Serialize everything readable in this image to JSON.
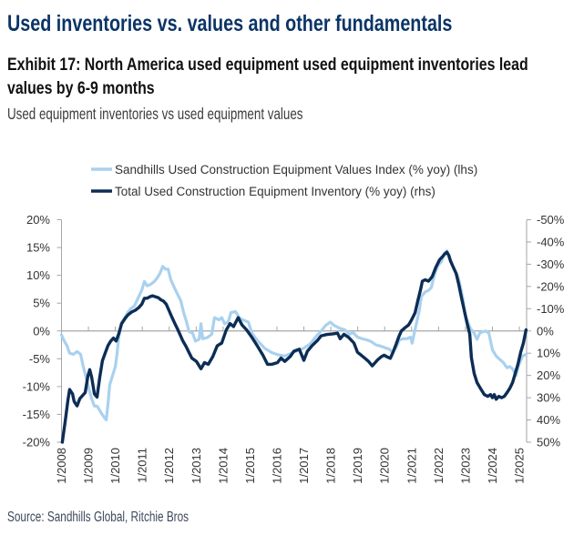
{
  "header": {
    "title": "Used inventories vs. values and other fundamentals",
    "exhibit_line1": "Exhibit 17: North America used equipment used equipment inventories lead",
    "exhibit_line2": "values by 6-9 months",
    "subtitle": "Used equipment inventories vs used equipment values"
  },
  "footer": {
    "source": "Source: Sandhills Global, Ritchie Bros"
  },
  "colors": {
    "values_series": "#a9d1ef",
    "inventory_series": "#0c2d55",
    "title": "#0b3466",
    "axis": "#a6a6a6"
  },
  "chart_data": {
    "type": "line",
    "title": "Used equipment inventories vs used equipment values",
    "xlabel": "",
    "ylabel": "",
    "x_ticks": [
      "1/2008",
      "1/2009",
      "1/2010",
      "1/2011",
      "1/2012",
      "1/2013",
      "1/2014",
      "1/2015",
      "1/2016",
      "1/2017",
      "1/2018",
      "1/2019",
      "1/2020",
      "1/2021",
      "1/2022",
      "1/2023",
      "1/2024",
      "1/2025"
    ],
    "x_range": [
      2008.0,
      2025.29
    ],
    "y_left": {
      "range": [
        -20,
        20
      ],
      "ticks": [
        20,
        15,
        10,
        5,
        0,
        -5,
        -10,
        -15,
        -20
      ],
      "tick_labels": [
        "20%",
        "15%",
        "10%",
        "5%",
        "0%",
        "-5%",
        "-10%",
        "-15%",
        "-20%"
      ]
    },
    "y_right": {
      "range": [
        50,
        -50
      ],
      "inverted": true,
      "ticks": [
        -50,
        -40,
        -30,
        -20,
        -10,
        0,
        10,
        20,
        30,
        40,
        50
      ],
      "tick_labels": [
        "-50%",
        "-40%",
        "-30%",
        "-20%",
        "-10%",
        "0%",
        "10%",
        "20%",
        "30%",
        "40%",
        "50%"
      ]
    },
    "grid": false,
    "legend_position": "top",
    "series": [
      {
        "name": "Sandhills Used Construction Equipment Values Index (% yoy) (lhs)",
        "axis": "left",
        "points": [
          [
            2008.0,
            -0.7
          ],
          [
            2008.1,
            -1.8
          ],
          [
            2008.2,
            -2.6
          ],
          [
            2008.3,
            -4.0
          ],
          [
            2008.44,
            -4.2
          ],
          [
            2008.58,
            -3.7
          ],
          [
            2008.71,
            -4.2
          ],
          [
            2008.81,
            -6.4
          ],
          [
            2008.91,
            -8.3
          ],
          [
            2009.01,
            -10.3
          ],
          [
            2009.12,
            -12.2
          ],
          [
            2009.22,
            -13.5
          ],
          [
            2009.32,
            -13.5
          ],
          [
            2009.42,
            -14.3
          ],
          [
            2009.52,
            -15.1
          ],
          [
            2009.66,
            -16.0
          ],
          [
            2009.73,
            -13.0
          ],
          [
            2009.79,
            -9.7
          ],
          [
            2009.89,
            -8.1
          ],
          [
            2010.0,
            -6.4
          ],
          [
            2010.06,
            -4.2
          ],
          [
            2010.13,
            -0.9
          ],
          [
            2010.23,
            1.5
          ],
          [
            2010.37,
            2.6
          ],
          [
            2010.47,
            3.4
          ],
          [
            2010.57,
            4.0
          ],
          [
            2010.71,
            4.5
          ],
          [
            2010.84,
            5.9
          ],
          [
            2010.98,
            7.3
          ],
          [
            2011.08,
            8.9
          ],
          [
            2011.18,
            8.1
          ],
          [
            2011.32,
            8.4
          ],
          [
            2011.45,
            8.9
          ],
          [
            2011.55,
            9.5
          ],
          [
            2011.65,
            10.3
          ],
          [
            2011.76,
            11.6
          ],
          [
            2011.86,
            11.1
          ],
          [
            2011.96,
            11.1
          ],
          [
            2012.06,
            9.2
          ],
          [
            2012.16,
            8.1
          ],
          [
            2012.3,
            6.7
          ],
          [
            2012.43,
            5.4
          ],
          [
            2012.53,
            3.4
          ],
          [
            2012.63,
            1.8
          ],
          [
            2012.74,
            -0.1
          ],
          [
            2012.87,
            -0.4
          ],
          [
            2012.97,
            -1.8
          ],
          [
            2013.11,
            -1.5
          ],
          [
            2013.18,
            1.3
          ],
          [
            2013.24,
            -1.4
          ],
          [
            2013.41,
            -1.2
          ],
          [
            2013.58,
            -0.6
          ],
          [
            2013.68,
            2.4
          ],
          [
            2013.85,
            2.0
          ],
          [
            2013.95,
            2.4
          ],
          [
            2014.06,
            1.3
          ],
          [
            2014.19,
            1.6
          ],
          [
            2014.29,
            3.3
          ],
          [
            2014.46,
            3.5
          ],
          [
            2014.6,
            2.4
          ],
          [
            2014.73,
            2.0
          ],
          [
            2014.94,
            1.6
          ],
          [
            2015.07,
            -0.4
          ],
          [
            2015.27,
            -1.7
          ],
          [
            2015.54,
            -3.1
          ],
          [
            2015.81,
            -3.9
          ],
          [
            2016.05,
            -4.3
          ],
          [
            2016.29,
            -4.5
          ],
          [
            2016.49,
            -4.1
          ],
          [
            2016.73,
            -3.6
          ],
          [
            2017.0,
            -3.1
          ],
          [
            2017.24,
            -2.3
          ],
          [
            2017.47,
            -0.9
          ],
          [
            2017.64,
            0.0
          ],
          [
            2017.81,
            1.0
          ],
          [
            2017.98,
            1.6
          ],
          [
            2018.12,
            1.0
          ],
          [
            2018.32,
            0.5
          ],
          [
            2018.52,
            0.2
          ],
          [
            2018.69,
            -0.6
          ],
          [
            2018.83,
            -0.3
          ],
          [
            2018.99,
            -1.1
          ],
          [
            2019.16,
            -1.4
          ],
          [
            2019.33,
            -1.6
          ],
          [
            2019.5,
            -1.9
          ],
          [
            2019.67,
            -2.5
          ],
          [
            2019.84,
            -2.7
          ],
          [
            2020.01,
            -3.0
          ],
          [
            2020.18,
            -3.3
          ],
          [
            2020.28,
            -3.8
          ],
          [
            2020.42,
            -3.0
          ],
          [
            2020.55,
            -1.6
          ],
          [
            2020.69,
            -1.4
          ],
          [
            2020.82,
            -1.4
          ],
          [
            2020.96,
            -1.1
          ],
          [
            2021.02,
            -2.2
          ],
          [
            2021.09,
            -0.6
          ],
          [
            2021.19,
            1.6
          ],
          [
            2021.29,
            3.8
          ],
          [
            2021.36,
            6.2
          ],
          [
            2021.5,
            7.0
          ],
          [
            2021.63,
            7.3
          ],
          [
            2021.73,
            7.8
          ],
          [
            2021.84,
            10.0
          ],
          [
            2021.97,
            11.7
          ],
          [
            2022.11,
            12.5
          ],
          [
            2022.21,
            13.9
          ],
          [
            2022.31,
            14.4
          ],
          [
            2022.41,
            13.1
          ],
          [
            2022.55,
            11.4
          ],
          [
            2022.72,
            9.8
          ],
          [
            2022.8,
            8.2
          ],
          [
            2022.85,
            7.0
          ],
          [
            2022.91,
            5.7
          ],
          [
            2022.98,
            3.0
          ],
          [
            2023.05,
            2.0
          ],
          [
            2023.19,
            0.4
          ],
          [
            2023.32,
            -0.4
          ],
          [
            2023.43,
            -1.5
          ],
          [
            2023.53,
            -0.4
          ],
          [
            2023.66,
            -0.1
          ],
          [
            2023.76,
            0.0
          ],
          [
            2023.87,
            -0.4
          ],
          [
            2024.0,
            -3.4
          ],
          [
            2024.14,
            -4.5
          ],
          [
            2024.27,
            -5.1
          ],
          [
            2024.41,
            -5.7
          ],
          [
            2024.54,
            -6.6
          ],
          [
            2024.64,
            -6.4
          ],
          [
            2024.75,
            -6.8
          ],
          [
            2024.88,
            -8.0
          ],
          [
            2024.98,
            -6.1
          ],
          [
            2025.12,
            -4.5
          ],
          [
            2025.25,
            -4.2
          ]
        ]
      },
      {
        "name": "Total Used Construction Equipment Inventory (% yoy) (rhs)",
        "axis": "right",
        "points": [
          [
            2008.03,
            50
          ],
          [
            2008.14,
            40.5
          ],
          [
            2008.24,
            31
          ],
          [
            2008.3,
            26.3
          ],
          [
            2008.41,
            28.3
          ],
          [
            2008.47,
            31.7
          ],
          [
            2008.58,
            33.7
          ],
          [
            2008.68,
            30.4
          ],
          [
            2008.78,
            29
          ],
          [
            2008.88,
            27.7
          ],
          [
            2008.98,
            20.2
          ],
          [
            2009.05,
            17.4
          ],
          [
            2009.12,
            20.8
          ],
          [
            2009.22,
            28.3
          ],
          [
            2009.32,
            29.7
          ],
          [
            2009.42,
            20.8
          ],
          [
            2009.52,
            13.4
          ],
          [
            2009.62,
            10
          ],
          [
            2009.73,
            6.5
          ],
          [
            2009.83,
            4.5
          ],
          [
            2009.93,
            3.2
          ],
          [
            2010.03,
            4.5
          ],
          [
            2010.13,
            1.1
          ],
          [
            2010.23,
            -3.2
          ],
          [
            2010.37,
            -5.8
          ],
          [
            2010.47,
            -7.2
          ],
          [
            2010.6,
            -8.5
          ],
          [
            2010.74,
            -9.3
          ],
          [
            2010.88,
            -10.6
          ],
          [
            2010.98,
            -12
          ],
          [
            2011.08,
            -14.7
          ],
          [
            2011.18,
            -14.7
          ],
          [
            2011.28,
            -15.4
          ],
          [
            2011.38,
            -15.8
          ],
          [
            2011.48,
            -15.4
          ],
          [
            2011.59,
            -15
          ],
          [
            2011.69,
            -14
          ],
          [
            2011.79,
            -13.4
          ],
          [
            2011.89,
            -12
          ],
          [
            2011.99,
            -9.3
          ],
          [
            2012.09,
            -6.5
          ],
          [
            2012.19,
            -3.8
          ],
          [
            2012.3,
            -1.1
          ],
          [
            2012.4,
            1.6
          ],
          [
            2012.5,
            4.3
          ],
          [
            2012.63,
            7.1
          ],
          [
            2012.74,
            9.8
          ],
          [
            2012.84,
            12.2
          ],
          [
            2013.01,
            13.7
          ],
          [
            2013.18,
            17
          ],
          [
            2013.31,
            14.2
          ],
          [
            2013.45,
            15
          ],
          [
            2013.62,
            11.5
          ],
          [
            2013.78,
            6.7
          ],
          [
            2013.95,
            5.4
          ],
          [
            2014.12,
            -0.5
          ],
          [
            2014.26,
            -3.3
          ],
          [
            2014.39,
            -2
          ],
          [
            2014.56,
            -6
          ],
          [
            2014.7,
            -2.7
          ],
          [
            2014.87,
            -0.5
          ],
          [
            2015.07,
            2.9
          ],
          [
            2015.27,
            6.7
          ],
          [
            2015.48,
            10.9
          ],
          [
            2015.65,
            15
          ],
          [
            2015.81,
            15
          ],
          [
            2016.02,
            14.2
          ],
          [
            2016.15,
            12.2
          ],
          [
            2016.29,
            13.7
          ],
          [
            2016.49,
            11.5
          ],
          [
            2016.63,
            9.1
          ],
          [
            2016.83,
            8.2
          ],
          [
            2017.0,
            13.2
          ],
          [
            2017.13,
            9.1
          ],
          [
            2017.3,
            6.7
          ],
          [
            2017.51,
            4.2
          ],
          [
            2017.64,
            2.2
          ],
          [
            2017.84,
            1.6
          ],
          [
            2018.08,
            1.3
          ],
          [
            2018.25,
            1.0
          ],
          [
            2018.35,
            3.5
          ],
          [
            2018.49,
            1.5
          ],
          [
            2018.66,
            2.9
          ],
          [
            2018.86,
            5.4
          ],
          [
            2018.99,
            9.6
          ],
          [
            2019.13,
            10.9
          ],
          [
            2019.27,
            12.3
          ],
          [
            2019.4,
            13.7
          ],
          [
            2019.54,
            15.7
          ],
          [
            2019.64,
            14.3
          ],
          [
            2019.74,
            13
          ],
          [
            2019.87,
            11.6
          ],
          [
            2019.98,
            10.9
          ],
          [
            2020.08,
            11.6
          ],
          [
            2020.21,
            12.3
          ],
          [
            2020.31,
            9.6
          ],
          [
            2020.42,
            6.2
          ],
          [
            2020.52,
            2.7
          ],
          [
            2020.62,
            0
          ],
          [
            2020.75,
            -1.4
          ],
          [
            2020.89,
            -2.7
          ],
          [
            2020.99,
            -4.8
          ],
          [
            2021.13,
            -8.2
          ],
          [
            2021.23,
            -13.6
          ],
          [
            2021.33,
            -18.4
          ],
          [
            2021.4,
            -22.4
          ],
          [
            2021.5,
            -23
          ],
          [
            2021.63,
            -22.4
          ],
          [
            2021.77,
            -24.5
          ],
          [
            2021.9,
            -28.6
          ],
          [
            2022.04,
            -32
          ],
          [
            2022.14,
            -33.3
          ],
          [
            2022.24,
            -34.7
          ],
          [
            2022.31,
            -35.4
          ],
          [
            2022.38,
            -34
          ],
          [
            2022.45,
            -31.3
          ],
          [
            2022.55,
            -28.6
          ],
          [
            2022.65,
            -25.9
          ],
          [
            2022.75,
            -21
          ],
          [
            2022.85,
            -15
          ],
          [
            2022.95,
            -9.6
          ],
          [
            2023.05,
            -4
          ],
          [
            2023.16,
            1.4
          ],
          [
            2023.22,
            12
          ],
          [
            2023.32,
            19
          ],
          [
            2023.43,
            23.2
          ],
          [
            2023.56,
            25.9
          ],
          [
            2023.7,
            28.6
          ],
          [
            2023.83,
            29.4
          ],
          [
            2023.93,
            28.6
          ],
          [
            2024.0,
            30
          ],
          [
            2024.07,
            28.6
          ],
          [
            2024.14,
            30.7
          ],
          [
            2024.24,
            29.4
          ],
          [
            2024.34,
            30
          ],
          [
            2024.44,
            29.4
          ],
          [
            2024.54,
            27.8
          ],
          [
            2024.64,
            25.9
          ],
          [
            2024.75,
            23.2
          ],
          [
            2024.85,
            19
          ],
          [
            2024.95,
            15
          ],
          [
            2025.05,
            9.6
          ],
          [
            2025.15,
            5.4
          ],
          [
            2025.25,
            -0.5
          ]
        ]
      }
    ]
  }
}
